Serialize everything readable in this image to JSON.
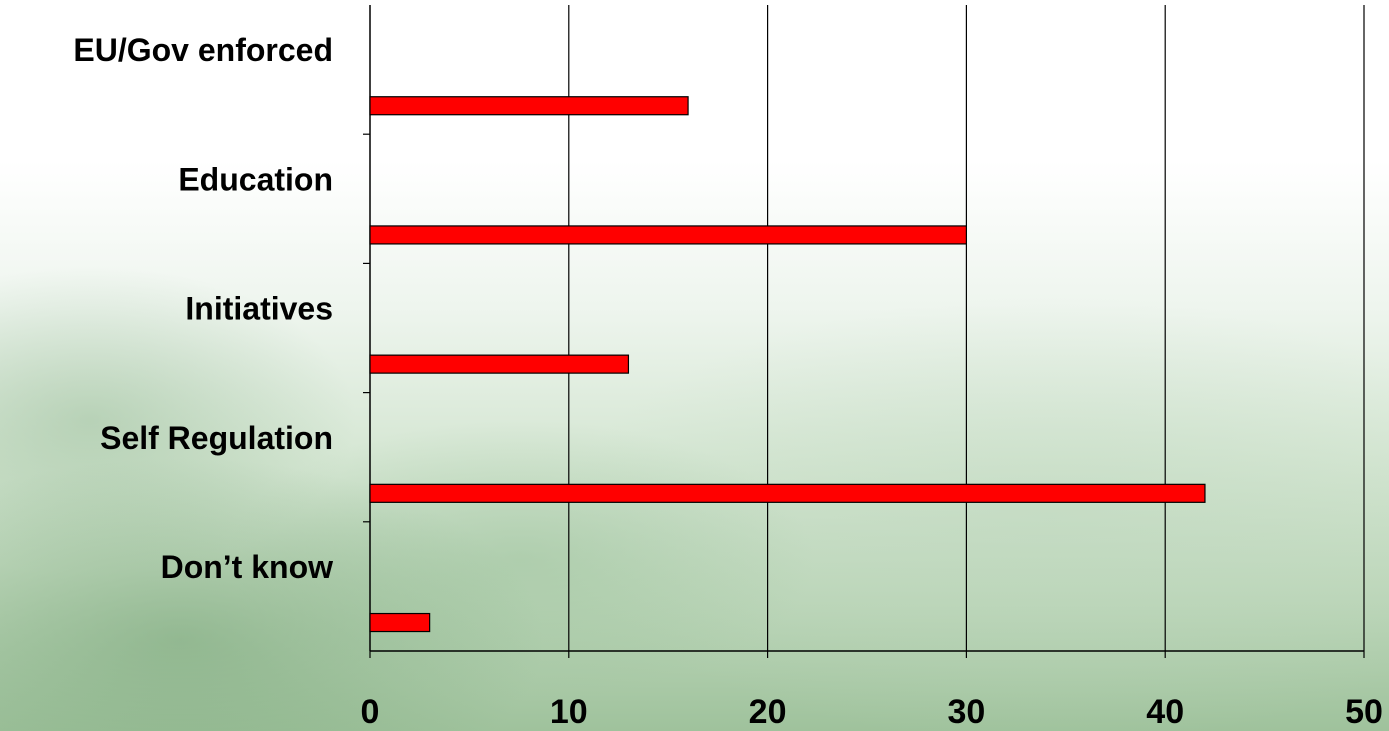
{
  "chart_data": {
    "type": "bar",
    "orientation": "horizontal",
    "categories": [
      "EU/Gov enforced",
      "Education",
      "Initiatives",
      "Self Regulation",
      "Don’t know"
    ],
    "values": [
      16,
      30,
      13,
      42,
      3
    ],
    "xlim": [
      0,
      50
    ],
    "xticks": [
      "0",
      "10",
      "20",
      "30",
      "40",
      "50"
    ],
    "grid": true,
    "legend": "none",
    "bar_color": "#ff0000"
  }
}
